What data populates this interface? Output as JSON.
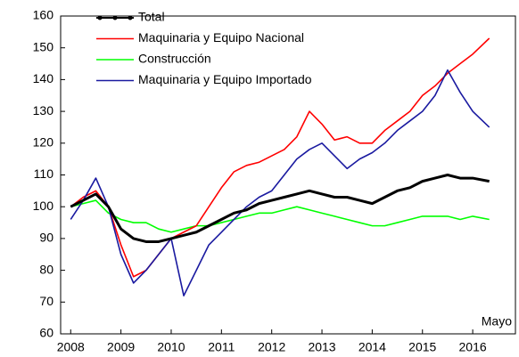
{
  "chart_data": {
    "type": "line",
    "annotation": "Mayo",
    "x": [
      2008,
      2008.25,
      2008.5,
      2008.75,
      2009,
      2009.25,
      2009.5,
      2009.75,
      2010,
      2010.25,
      2010.5,
      2010.75,
      2011,
      2011.25,
      2011.5,
      2011.75,
      2012,
      2012.25,
      2012.5,
      2012.75,
      2013,
      2013.25,
      2013.5,
      2013.75,
      2014,
      2014.25,
      2014.5,
      2014.75,
      2015,
      2015.25,
      2015.5,
      2015.75,
      2016,
      2016.33
    ],
    "series": [
      {
        "name": "Total",
        "color": "#000000",
        "values": [
          100,
          102,
          104,
          100,
          93,
          90,
          89,
          89,
          90,
          91,
          92,
          94,
          96,
          98,
          99,
          101,
          102,
          103,
          104,
          105,
          104,
          103,
          103,
          102,
          101,
          103,
          105,
          106,
          108,
          109,
          110,
          109,
          109,
          108
        ]
      },
      {
        "name": "Maquinaria y Equipo Nacional",
        "color": "#ff0000",
        "values": [
          100,
          103,
          105,
          100,
          88,
          78,
          80,
          85,
          90,
          92,
          94,
          100,
          106,
          111,
          113,
          114,
          116,
          118,
          122,
          130,
          126,
          121,
          122,
          120,
          120,
          124,
          127,
          130,
          135,
          138,
          142,
          145,
          148,
          153
        ]
      },
      {
        "name": "Construcción",
        "color": "#00ff00",
        "values": [
          100,
          101,
          102,
          98,
          96,
          95,
          95,
          93,
          92,
          93,
          94,
          94,
          95,
          96,
          97,
          98,
          98,
          99,
          100,
          99,
          98,
          97,
          96,
          95,
          94,
          94,
          95,
          96,
          97,
          97,
          97,
          96,
          97,
          96
        ]
      },
      {
        "name": "Maquinaria y Equipo Importado",
        "color": "#1a1aa0",
        "values": [
          96,
          102,
          109,
          100,
          85,
          76,
          80,
          85,
          90,
          72,
          80,
          88,
          92,
          96,
          100,
          103,
          105,
          110,
          115,
          118,
          120,
          116,
          112,
          115,
          117,
          120,
          124,
          127,
          130,
          135,
          143,
          136,
          130,
          125
        ]
      }
    ],
    "xlim": [
      2007.8,
      2016.85
    ],
    "xticks": [
      2008,
      2009,
      2010,
      2011,
      2012,
      2013,
      2014,
      2015,
      2016
    ],
    "ylim": [
      60,
      160
    ],
    "yticks": [
      60,
      70,
      80,
      90,
      100,
      110,
      120,
      130,
      140,
      150,
      160
    ],
    "grid": false,
    "legend": "upper left"
  }
}
